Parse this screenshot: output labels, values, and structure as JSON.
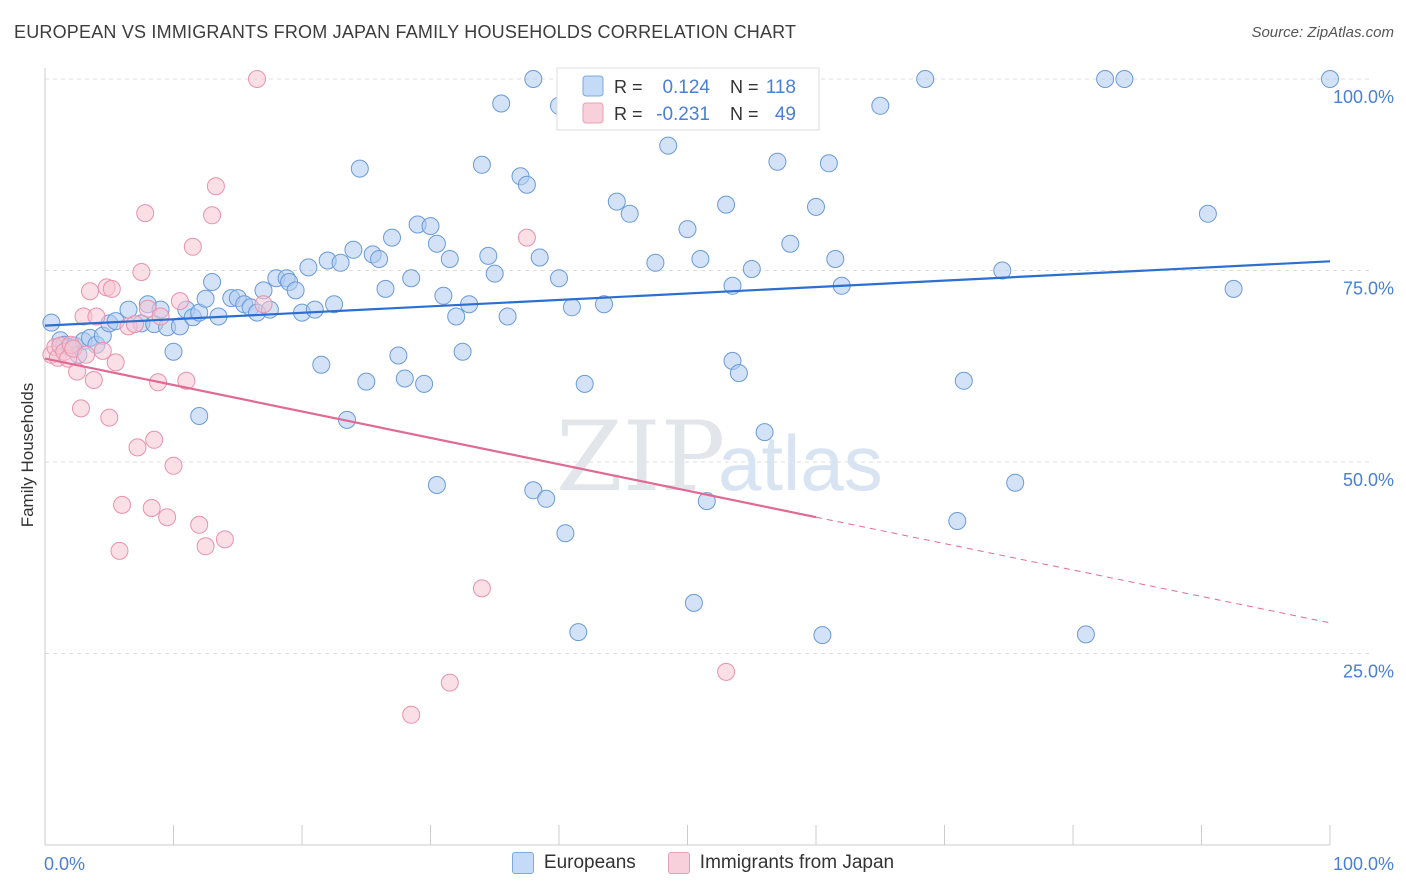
{
  "title": "EUROPEAN VS IMMIGRANTS FROM JAPAN FAMILY HOUSEHOLDS CORRELATION CHART",
  "source": "Source: ZipAtlas.com",
  "watermark": {
    "zip": "ZIP",
    "atlas": "atlas"
  },
  "colors": {
    "blue_fill": "#aecbf0",
    "blue_stroke": "#6a9bd8",
    "blue_line": "#2a6fd1",
    "pink_fill": "#f6c4d3",
    "pink_stroke": "#e892ad",
    "pink_line": "#e06a94",
    "tick_label": "#4a7fd4",
    "grid": "#dddddd"
  },
  "legend": {
    "rows": [
      {
        "r_label": "R =",
        "r_value": "0.124",
        "n_label": "N =",
        "n_value": "118"
      },
      {
        "r_label": "R =",
        "r_value": "-0.231",
        "n_label": "N =",
        "n_value": "49"
      }
    ]
  },
  "bottom_legend": [
    "Europeans",
    "Immigrants from Japan"
  ],
  "chart_data": {
    "type": "scatter",
    "xlabel": "",
    "ylabel": "Family Households",
    "xlim": [
      0,
      100
    ],
    "ylim": [
      0,
      100
    ],
    "x_tick_labels": [
      "0.0%",
      "100.0%"
    ],
    "y_tick_labels": [
      "25.0%",
      "50.0%",
      "75.0%",
      "100.0%"
    ],
    "y_ticks": [
      25,
      50,
      75,
      100
    ],
    "grid": true,
    "legend_position": "top-center",
    "series": [
      {
        "name": "Europeans",
        "points": [
          [
            0.5,
            68.2
          ],
          [
            1.2,
            65.9
          ],
          [
            1.5,
            65.3
          ],
          [
            1.9,
            65.0
          ],
          [
            2.3,
            65.2
          ],
          [
            2.6,
            64.0
          ],
          [
            3.0,
            65.8
          ],
          [
            3.5,
            66.2
          ],
          [
            4.0,
            65.3
          ],
          [
            4.5,
            66.5
          ],
          [
            5.0,
            68.1
          ],
          [
            5.5,
            68.4
          ],
          [
            6.5,
            69.9
          ],
          [
            7.5,
            68.1
          ],
          [
            8.0,
            70.6
          ],
          [
            8.5,
            68.0
          ],
          [
            9.0,
            69.9
          ],
          [
            9.5,
            67.6
          ],
          [
            10.0,
            64.4
          ],
          [
            10.5,
            67.7
          ],
          [
            11.0,
            69.9
          ],
          [
            11.5,
            68.9
          ],
          [
            12.0,
            69.5
          ],
          [
            12.5,
            71.3
          ],
          [
            13.0,
            73.5
          ],
          [
            13.5,
            69.0
          ],
          [
            14.5,
            71.4
          ],
          [
            15.0,
            71.4
          ],
          [
            15.5,
            70.6
          ],
          [
            16.0,
            70.2
          ],
          [
            16.5,
            69.5
          ],
          [
            17.0,
            72.4
          ],
          [
            17.5,
            69.9
          ],
          [
            18.0,
            74.0
          ],
          [
            18.8,
            74.0
          ],
          [
            19.0,
            73.5
          ],
          [
            19.5,
            72.4
          ],
          [
            20.0,
            69.5
          ],
          [
            20.5,
            75.4
          ],
          [
            21.0,
            69.9
          ],
          [
            21.5,
            62.7
          ],
          [
            22.0,
            76.3
          ],
          [
            22.5,
            70.6
          ],
          [
            23.0,
            76.0
          ],
          [
            23.5,
            55.5
          ],
          [
            24.0,
            77.7
          ],
          [
            24.5,
            88.3
          ],
          [
            25.0,
            60.5
          ],
          [
            25.5,
            77.1
          ],
          [
            26.0,
            76.5
          ],
          [
            26.5,
            72.6
          ],
          [
            27.0,
            79.3
          ],
          [
            27.5,
            63.9
          ],
          [
            28.0,
            60.9
          ],
          [
            28.5,
            74.0
          ],
          [
            29.0,
            81.0
          ],
          [
            29.5,
            60.2
          ],
          [
            30.0,
            80.8
          ],
          [
            30.5,
            78.5
          ],
          [
            31.0,
            71.7
          ],
          [
            31.5,
            76.5
          ],
          [
            32.0,
            69.0
          ],
          [
            32.5,
            64.4
          ],
          [
            33.0,
            70.6
          ],
          [
            34.0,
            88.8
          ],
          [
            34.5,
            76.9
          ],
          [
            35.0,
            74.6
          ],
          [
            35.5,
            96.8
          ],
          [
            36.0,
            69.0
          ],
          [
            37.0,
            87.3
          ],
          [
            37.5,
            86.2
          ],
          [
            38.0,
            100.0
          ],
          [
            38.5,
            76.7
          ],
          [
            38.0,
            46.3
          ],
          [
            39.0,
            45.2
          ],
          [
            40.0,
            74.0
          ],
          [
            40.5,
            40.7
          ],
          [
            41.0,
            70.2
          ],
          [
            41.5,
            27.8
          ],
          [
            42.0,
            60.2
          ],
          [
            43.5,
            70.6
          ],
          [
            44.5,
            84.0
          ],
          [
            45.5,
            82.4
          ],
          [
            47.5,
            76.0
          ],
          [
            48.5,
            91.3
          ],
          [
            50.0,
            80.4
          ],
          [
            50.5,
            31.6
          ],
          [
            51.0,
            76.5
          ],
          [
            51.5,
            44.9
          ],
          [
            52.5,
            96.3
          ],
          [
            53.0,
            83.6
          ],
          [
            53.5,
            73.0
          ],
          [
            53.5,
            63.2
          ],
          [
            54.0,
            61.6
          ],
          [
            55.0,
            75.2
          ],
          [
            56.0,
            53.9
          ],
          [
            57.0,
            89.2
          ],
          [
            58.0,
            78.5
          ],
          [
            60.0,
            83.3
          ],
          [
            60.5,
            27.4
          ],
          [
            61.0,
            89.0
          ],
          [
            61.5,
            76.5
          ],
          [
            62.0,
            73.0
          ],
          [
            68.5,
            100.0
          ],
          [
            71.0,
            42.3
          ],
          [
            71.5,
            60.6
          ],
          [
            74.5,
            75.0
          ],
          [
            75.5,
            47.3
          ],
          [
            81.0,
            27.5
          ],
          [
            82.5,
            100.0
          ],
          [
            84.0,
            100.0
          ],
          [
            90.5,
            82.4
          ],
          [
            92.5,
            72.6
          ],
          [
            100.0,
            100.0
          ],
          [
            40.0,
            96.5
          ],
          [
            65.0,
            96.5
          ],
          [
            30.5,
            47.0
          ],
          [
            12.0,
            56.0
          ]
        ]
      },
      {
        "name": "Immigrants from Japan",
        "points": [
          [
            0.5,
            64.0
          ],
          [
            0.8,
            65.0
          ],
          [
            1.0,
            63.6
          ],
          [
            1.2,
            65.2
          ],
          [
            1.5,
            64.4
          ],
          [
            1.8,
            63.5
          ],
          [
            2.0,
            65.3
          ],
          [
            2.2,
            64.8
          ],
          [
            2.5,
            61.8
          ],
          [
            2.8,
            57.0
          ],
          [
            3.0,
            69.0
          ],
          [
            3.2,
            64.0
          ],
          [
            3.5,
            72.3
          ],
          [
            3.8,
            60.7
          ],
          [
            4.0,
            69.0
          ],
          [
            4.5,
            64.5
          ],
          [
            4.8,
            72.8
          ],
          [
            5.0,
            55.8
          ],
          [
            5.2,
            72.6
          ],
          [
            5.5,
            63.0
          ],
          [
            5.8,
            38.4
          ],
          [
            6.0,
            44.4
          ],
          [
            6.5,
            67.7
          ],
          [
            7.0,
            68.0
          ],
          [
            7.2,
            51.9
          ],
          [
            7.5,
            74.8
          ],
          [
            7.8,
            82.5
          ],
          [
            8.0,
            70.0
          ],
          [
            8.3,
            44.0
          ],
          [
            8.5,
            52.9
          ],
          [
            8.8,
            60.4
          ],
          [
            9.0,
            69.0
          ],
          [
            9.5,
            42.8
          ],
          [
            10.0,
            49.5
          ],
          [
            10.5,
            71.0
          ],
          [
            11.0,
            60.6
          ],
          [
            11.5,
            78.1
          ],
          [
            12.0,
            41.8
          ],
          [
            12.5,
            39.0
          ],
          [
            13.0,
            82.2
          ],
          [
            13.3,
            86.0
          ],
          [
            14.0,
            39.9
          ],
          [
            16.5,
            100.0
          ],
          [
            17.0,
            70.6
          ],
          [
            28.5,
            17.0
          ],
          [
            31.5,
            21.2
          ],
          [
            34.0,
            33.5
          ],
          [
            37.5,
            79.3
          ],
          [
            53.0,
            22.6
          ]
        ]
      }
    ],
    "trend_lines": [
      {
        "series": "Europeans",
        "x": [
          0,
          100
        ],
        "y": [
          67.8,
          76.2
        ],
        "style": "solid"
      },
      {
        "series": "Immigrants from Japan",
        "x": [
          0,
          60
        ],
        "y": [
          63.5,
          42.8
        ],
        "style": "solid"
      },
      {
        "series": "Immigrants from Japan",
        "x": [
          60,
          100
        ],
        "y": [
          42.8,
          29.0
        ],
        "style": "dashed"
      }
    ]
  }
}
